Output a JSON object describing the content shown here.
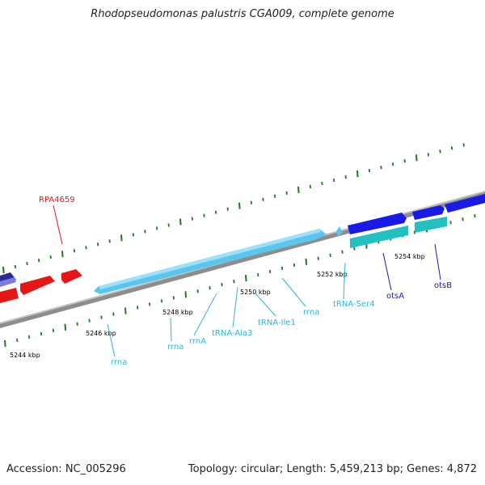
{
  "title": "Rhodopseudomonas palustris CGA009, complete genome",
  "footer": {
    "accession": "Accession: NC_005296",
    "summary": "Topology: circular; Length: 5,459,213 bp; Genes: 4,872"
  },
  "colors": {
    "backbone": "#8a8a8a",
    "tick": "#1e7a1e",
    "rrna_block": "#5bc8f0",
    "forward_cds": "#1a1ae0",
    "reverse_cds": "#e01a1a",
    "rna_label": "#29b6d8",
    "cds_label": "#1a1aa8",
    "teal_feature": "#33c8c8"
  },
  "scale_labels": [
    "5244 kbp",
    "5246 kbp",
    "5248 kbp",
    "5250 kbp",
    "5252 kbp",
    "5254 kbp"
  ],
  "gene_labels": [
    {
      "text": "RPA4659",
      "kind": "reverse_cds"
    },
    {
      "text": "rrna",
      "kind": "rna"
    },
    {
      "text": "rrna",
      "kind": "rna"
    },
    {
      "text": "rrnA",
      "kind": "rna"
    },
    {
      "text": "tRNA-Ala3",
      "kind": "rna"
    },
    {
      "text": "tRNA-Ile1",
      "kind": "rna"
    },
    {
      "text": "rrna",
      "kind": "rna"
    },
    {
      "text": "tRNA-Ser4",
      "kind": "rna"
    },
    {
      "text": "otsA",
      "kind": "cds"
    },
    {
      "text": "otsB",
      "kind": "cds"
    }
  ]
}
